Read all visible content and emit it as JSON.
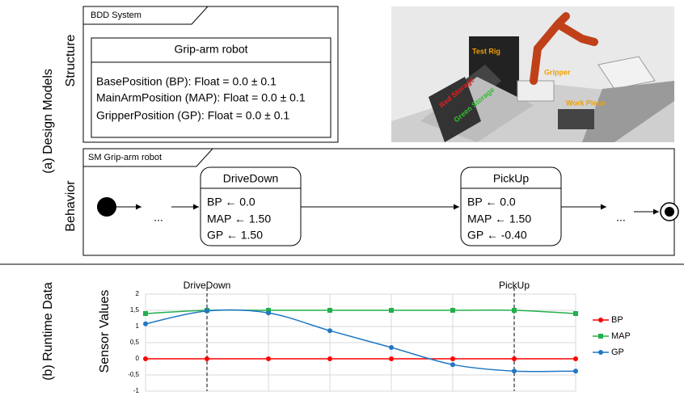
{
  "design_models": {
    "label": "(a) Design Models",
    "structure_label": "Structure",
    "behavior_label": "Behavior",
    "bdd": {
      "title": "BDD System",
      "block": "Grip-arm robot",
      "properties": [
        "BasePosition (BP): Float = 0.0 ± 0.1",
        "MainArmPosition (MAP): Float = 0.0 ± 0.1",
        "GripperPosition (GP): Float = 0.0 ± 0.1"
      ]
    },
    "scene": {
      "test_rig": "Test Rig",
      "gripper": "Gripper",
      "red_storage": "Red Storage",
      "green_storage": "Green Storage",
      "work_piece": "Work Piece"
    },
    "state_machine": {
      "title": "SM Grip-arm robot",
      "ellipsis": "...",
      "states": [
        {
          "name": "DriveDown",
          "actions": [
            "BP ← 0.0",
            "MAP ← 1.50",
            "GP ← 1.50"
          ]
        },
        {
          "name": "PickUp",
          "actions": [
            "BP ← 0.0",
            "MAP ← 1.50",
            "GP ← -0.40"
          ]
        }
      ]
    }
  },
  "runtime_label": "(b) Runtime Data",
  "chart_data": {
    "type": "line",
    "y_label": "Sensor Values",
    "categories": [
      null,
      null,
      null,
      null,
      null,
      null,
      null,
      null
    ],
    "series": [
      {
        "name": "BP",
        "color": "#ff0000",
        "marker": "circle",
        "values": [
          0,
          0,
          0,
          0,
          0,
          0,
          0,
          0
        ]
      },
      {
        "name": "MAP",
        "color": "#22b04c",
        "marker": "square",
        "values": [
          1.4,
          1.5,
          1.5,
          1.5,
          1.5,
          1.5,
          1.5,
          1.4
        ]
      },
      {
        "name": "GP",
        "color": "#1f77c4",
        "marker": "circle",
        "values": [
          1.08,
          1.48,
          1.42,
          0.87,
          0.35,
          -0.18,
          -0.38,
          -0.38
        ]
      }
    ],
    "annotations": [
      {
        "text": "DriveDown",
        "category": 1
      },
      {
        "text": "PickUp",
        "category": 6
      }
    ],
    "ylim": [
      -1,
      2
    ],
    "yticks": [
      -1,
      {
        "value": -0.5,
        "label": "-0,5"
      },
      0,
      {
        "value": 0.5,
        "label": "0,5"
      },
      1,
      {
        "value": 1.5,
        "label": "1,5"
      },
      2
    ],
    "grid": true,
    "smooth": true,
    "legend": "right"
  }
}
